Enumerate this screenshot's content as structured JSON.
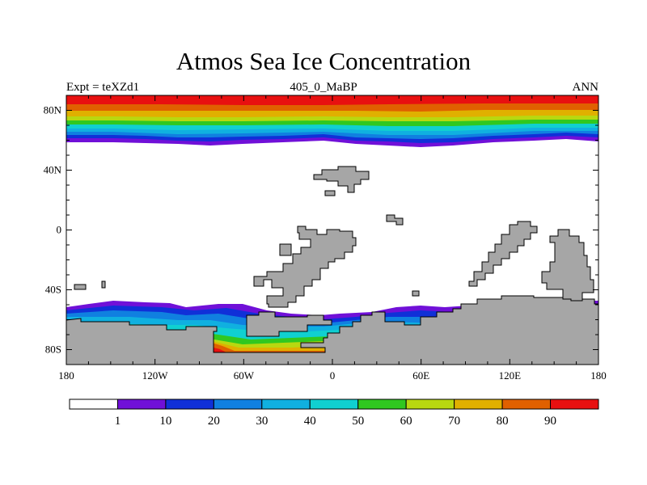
{
  "title": "Atmos Sea Ice Concentration",
  "subtitle_left": "Expt = teXZd1",
  "subtitle_center": "405_0_MaBP",
  "subtitle_right": "ANN",
  "map": {
    "lon_ticks": [
      {
        "lon": -180,
        "label": "180"
      },
      {
        "lon": -120,
        "label": "120W"
      },
      {
        "lon": -60,
        "label": "60W"
      },
      {
        "lon": 0,
        "label": "0"
      },
      {
        "lon": 60,
        "label": "60E"
      },
      {
        "lon": 120,
        "label": "120E"
      },
      {
        "lon": 180,
        "label": "180"
      }
    ],
    "lat_ticks": [
      {
        "lat": 80,
        "label": "80N"
      },
      {
        "lat": 40,
        "label": "40N"
      },
      {
        "lat": 0,
        "label": "0"
      },
      {
        "lat": -40,
        "label": "40S"
      },
      {
        "lat": -80,
        "label": "80S"
      }
    ],
    "lat_range": [
      -90,
      90
    ],
    "lon_range": [
      -180,
      180
    ]
  },
  "colorbar": {
    "colors": [
      "#ffffff",
      "#7010d8",
      "#1030d8",
      "#1080e0",
      "#10b0e0",
      "#10d0d0",
      "#30c820",
      "#b8d810",
      "#e0b000",
      "#e06000",
      "#e81010"
    ],
    "labels": [
      "1",
      "10",
      "20",
      "30",
      "40",
      "50",
      "60",
      "70",
      "80",
      "90"
    ]
  },
  "colors": {
    "land": "#a6a6a6",
    "outline": "#000000"
  }
}
